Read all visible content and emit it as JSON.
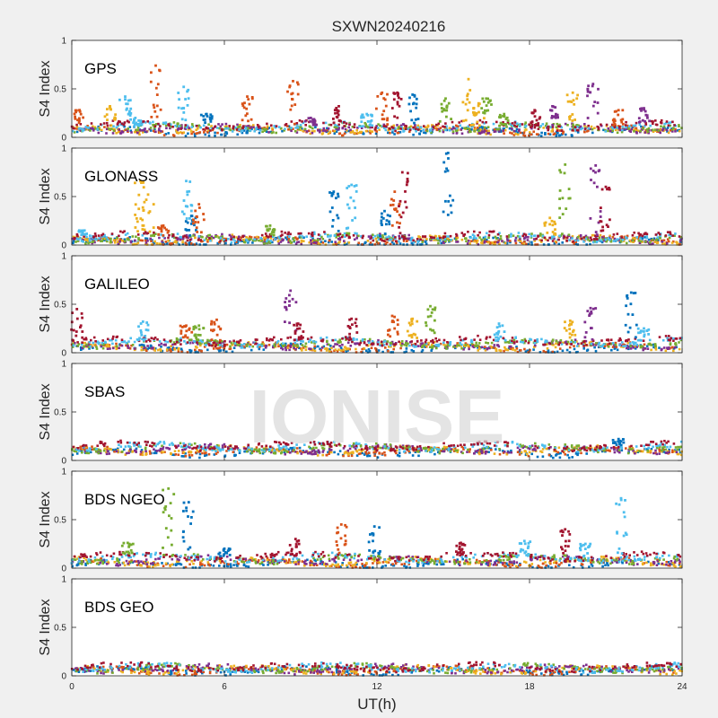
{
  "figure_title": "SXWN20240216",
  "watermark": "IONISE",
  "xlabel": "UT(h)",
  "chart_data": {
    "type": "scatter",
    "title": "SXWN20240216",
    "xlabel": "UT(h)",
    "ylabel": "S4 Index",
    "xlim": [
      0,
      24
    ],
    "ylim": [
      0,
      1
    ],
    "x_ticks": [
      "0",
      "6",
      "12",
      "18",
      "24"
    ],
    "y_ticks": [
      "0",
      "0.5",
      "1"
    ],
    "grid": false,
    "colors": [
      "#0072bd",
      "#d95319",
      "#edb120",
      "#7e2f8e",
      "#77ac30",
      "#4dbeee",
      "#a2142f"
    ],
    "panels": [
      {
        "system": "GPS",
        "baseline": [
          0.06,
          0.12
        ],
        "spikes": [
          {
            "x": 0.3,
            "peak": 0.28,
            "color": "#d95319"
          },
          {
            "x": 1.5,
            "peak": 0.32,
            "color": "#edb120"
          },
          {
            "x": 2.1,
            "peak": 0.42,
            "color": "#4dbeee"
          },
          {
            "x": 2.5,
            "peak": 0.2,
            "color": "#4dbeee"
          },
          {
            "x": 3.3,
            "peak": 0.74,
            "color": "#d95319"
          },
          {
            "x": 4.4,
            "peak": 0.52,
            "color": "#4dbeee"
          },
          {
            "x": 5.3,
            "peak": 0.24,
            "color": "#0072bd"
          },
          {
            "x": 6.9,
            "peak": 0.42,
            "color": "#d95319"
          },
          {
            "x": 8.7,
            "peak": 0.58,
            "color": "#d95319"
          },
          {
            "x": 9.4,
            "peak": 0.2,
            "color": "#7e2f8e"
          },
          {
            "x": 10.5,
            "peak": 0.32,
            "color": "#a2142f"
          },
          {
            "x": 11.6,
            "peak": 0.24,
            "color": "#4dbeee"
          },
          {
            "x": 12.2,
            "peak": 0.46,
            "color": "#d95319"
          },
          {
            "x": 12.8,
            "peak": 0.46,
            "color": "#a2142f"
          },
          {
            "x": 13.4,
            "peak": 0.44,
            "color": "#0072bd"
          },
          {
            "x": 14.7,
            "peak": 0.4,
            "color": "#77ac30"
          },
          {
            "x": 15.6,
            "peak": 0.6,
            "color": "#edb120"
          },
          {
            "x": 16.0,
            "peak": 0.35,
            "color": "#edb120"
          },
          {
            "x": 16.3,
            "peak": 0.4,
            "color": "#77ac30"
          },
          {
            "x": 17.0,
            "peak": 0.24,
            "color": "#77ac30"
          },
          {
            "x": 18.2,
            "peak": 0.28,
            "color": "#a2142f"
          },
          {
            "x": 18.9,
            "peak": 0.32,
            "color": "#7e2f8e"
          },
          {
            "x": 19.7,
            "peak": 0.46,
            "color": "#edb120"
          },
          {
            "x": 20.5,
            "peak": 0.55,
            "color": "#7e2f8e"
          },
          {
            "x": 21.5,
            "peak": 0.28,
            "color": "#d95319"
          },
          {
            "x": 22.5,
            "peak": 0.3,
            "color": "#7e2f8e"
          }
        ]
      },
      {
        "system": "GLONASS",
        "baseline": [
          0.03,
          0.09
        ],
        "spikes": [
          {
            "x": 0.5,
            "peak": 0.15,
            "color": "#4dbeee"
          },
          {
            "x": 2.7,
            "peak": 0.66,
            "color": "#edb120"
          },
          {
            "x": 3.0,
            "peak": 0.52,
            "color": "#edb120"
          },
          {
            "x": 3.6,
            "peak": 0.2,
            "color": "#d95319"
          },
          {
            "x": 4.5,
            "peak": 0.66,
            "color": "#4dbeee"
          },
          {
            "x": 4.7,
            "peak": 0.3,
            "color": "#0072bd"
          },
          {
            "x": 5.0,
            "peak": 0.42,
            "color": "#d95319"
          },
          {
            "x": 7.8,
            "peak": 0.2,
            "color": "#77ac30"
          },
          {
            "x": 10.3,
            "peak": 0.55,
            "color": "#0072bd"
          },
          {
            "x": 11.0,
            "peak": 0.62,
            "color": "#4dbeee"
          },
          {
            "x": 12.3,
            "peak": 0.35,
            "color": "#0072bd"
          },
          {
            "x": 12.7,
            "peak": 0.55,
            "color": "#d95319"
          },
          {
            "x": 13.0,
            "peak": 0.75,
            "color": "#a2142f"
          },
          {
            "x": 14.8,
            "peak": 0.95,
            "color": "#0072bd"
          },
          {
            "x": 18.8,
            "peak": 0.28,
            "color": "#edb120"
          },
          {
            "x": 19.4,
            "peak": 0.83,
            "color": "#77ac30"
          },
          {
            "x": 20.6,
            "peak": 0.82,
            "color": "#7e2f8e"
          },
          {
            "x": 21.0,
            "peak": 0.6,
            "color": "#a2142f"
          }
        ]
      },
      {
        "system": "GALILEO",
        "baseline": [
          0.04,
          0.12
        ],
        "spikes": [
          {
            "x": 0.2,
            "peak": 0.45,
            "color": "#a2142f"
          },
          {
            "x": 2.8,
            "peak": 0.32,
            "color": "#4dbeee"
          },
          {
            "x": 4.5,
            "peak": 0.28,
            "color": "#d95319"
          },
          {
            "x": 5.0,
            "peak": 0.28,
            "color": "#77ac30"
          },
          {
            "x": 5.7,
            "peak": 0.34,
            "color": "#d95319"
          },
          {
            "x": 8.6,
            "peak": 0.64,
            "color": "#7e2f8e"
          },
          {
            "x": 8.9,
            "peak": 0.3,
            "color": "#a2142f"
          },
          {
            "x": 11.0,
            "peak": 0.35,
            "color": "#a2142f"
          },
          {
            "x": 12.6,
            "peak": 0.38,
            "color": "#d95319"
          },
          {
            "x": 13.4,
            "peak": 0.35,
            "color": "#edb120"
          },
          {
            "x": 14.1,
            "peak": 0.48,
            "color": "#77ac30"
          },
          {
            "x": 16.8,
            "peak": 0.3,
            "color": "#4dbeee"
          },
          {
            "x": 19.6,
            "peak": 0.33,
            "color": "#edb120"
          },
          {
            "x": 20.4,
            "peak": 0.46,
            "color": "#7e2f8e"
          },
          {
            "x": 22.0,
            "peak": 0.62,
            "color": "#0072bd"
          },
          {
            "x": 22.5,
            "peak": 0.25,
            "color": "#4dbeee"
          }
        ]
      },
      {
        "system": "SBAS",
        "baseline": [
          0.08,
          0.15
        ],
        "spikes": [
          {
            "x": 21.5,
            "peak": 0.22,
            "color": "#0072bd"
          }
        ]
      },
      {
        "system": "BDS NGEO",
        "baseline": [
          0.04,
          0.12
        ],
        "spikes": [
          {
            "x": 2.2,
            "peak": 0.26,
            "color": "#77ac30"
          },
          {
            "x": 3.8,
            "peak": 0.82,
            "color": "#77ac30"
          },
          {
            "x": 4.6,
            "peak": 0.68,
            "color": "#0072bd"
          },
          {
            "x": 6.0,
            "peak": 0.2,
            "color": "#0072bd"
          },
          {
            "x": 8.8,
            "peak": 0.3,
            "color": "#a2142f"
          },
          {
            "x": 10.6,
            "peak": 0.45,
            "color": "#d95319"
          },
          {
            "x": 11.9,
            "peak": 0.43,
            "color": "#0072bd"
          },
          {
            "x": 15.3,
            "peak": 0.26,
            "color": "#a2142f"
          },
          {
            "x": 17.8,
            "peak": 0.28,
            "color": "#4dbeee"
          },
          {
            "x": 19.4,
            "peak": 0.4,
            "color": "#a2142f"
          },
          {
            "x": 20.2,
            "peak": 0.25,
            "color": "#4dbeee"
          },
          {
            "x": 21.6,
            "peak": 0.72,
            "color": "#4dbeee"
          }
        ]
      },
      {
        "system": "BDS GEO",
        "baseline": [
          0.05,
          0.09
        ],
        "spikes": []
      }
    ]
  }
}
